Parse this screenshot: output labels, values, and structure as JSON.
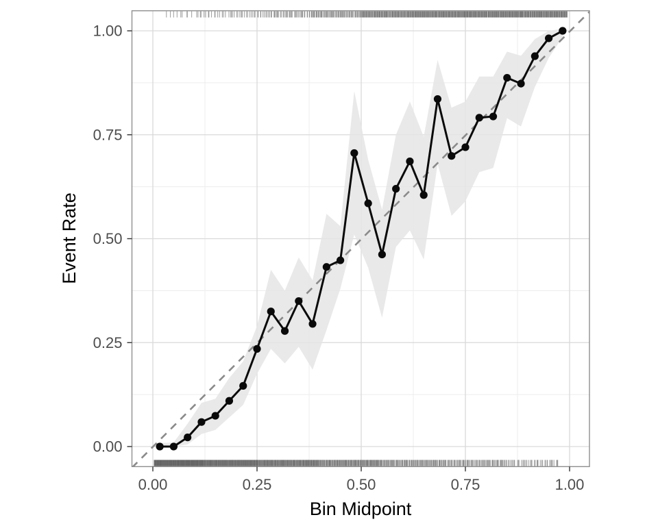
{
  "figure": {
    "background": "#ffffff"
  },
  "chart_data": {
    "type": "line",
    "title": "",
    "xlabel": "Bin Midpoint",
    "ylabel": "Event Rate",
    "xlim": [
      -0.05,
      1.048
    ],
    "ylim": [
      -0.048,
      1.048
    ],
    "grid": {
      "major": true,
      "minor": true,
      "legend": "none"
    },
    "x_major_ticks": [
      0,
      0.25,
      0.5,
      0.75,
      1.0
    ],
    "x_tick_labels": [
      "0.00",
      "0.25",
      "0.50",
      "0.75",
      "1.00"
    ],
    "x_minor_ticks": [
      0.125,
      0.375,
      0.625,
      0.875
    ],
    "y_major_ticks": [
      0,
      0.25,
      0.5,
      0.75,
      1.0
    ],
    "y_tick_labels": [
      "0.00",
      "0.25",
      "0.50",
      "0.75",
      "1.00"
    ],
    "y_minor_ticks": [
      0.125,
      0.375,
      0.625,
      0.875
    ],
    "reference_line": {
      "kind": "diagonal-identity",
      "style": "dashed",
      "color": "#8a8a8a"
    },
    "series": [
      {
        "name": "binned event rate",
        "marker": "point",
        "color": "#0a0a0a",
        "x": [
          0.0167,
          0.05,
          0.0833,
          0.1167,
          0.15,
          0.1833,
          0.2167,
          0.25,
          0.2833,
          0.3167,
          0.35,
          0.3833,
          0.4167,
          0.45,
          0.4833,
          0.5167,
          0.55,
          0.5833,
          0.6167,
          0.65,
          0.6833,
          0.7167,
          0.75,
          0.7833,
          0.8167,
          0.85,
          0.8833,
          0.9167,
          0.95,
          0.9833
        ],
        "y": [
          0.0,
          0.0,
          0.022,
          0.059,
          0.074,
          0.11,
          0.146,
          0.235,
          0.325,
          0.278,
          0.35,
          0.295,
          0.432,
          0.448,
          0.706,
          0.585,
          0.462,
          0.62,
          0.686,
          0.605,
          0.836,
          0.699,
          0.72,
          0.791,
          0.794,
          0.887,
          0.873,
          0.939,
          0.982,
          1.0
        ]
      }
    ],
    "ribbon": {
      "name": "confidence band",
      "color": "#e5e5e5",
      "opacity": 0.85,
      "x": [
        0.0167,
        0.05,
        0.0833,
        0.1167,
        0.15,
        0.1833,
        0.2167,
        0.25,
        0.2833,
        0.3167,
        0.35,
        0.3833,
        0.4167,
        0.45,
        0.4833,
        0.5167,
        0.55,
        0.5833,
        0.6167,
        0.65,
        0.6833,
        0.7167,
        0.75,
        0.7833,
        0.8167,
        0.85,
        0.8833,
        0.9167,
        0.95,
        0.9833
      ],
      "lower": [
        0.0,
        0.0,
        0.005,
        0.03,
        0.04,
        0.07,
        0.1,
        0.175,
        0.235,
        0.2,
        0.24,
        0.185,
        0.28,
        0.38,
        0.51,
        0.43,
        0.31,
        0.48,
        0.52,
        0.45,
        0.68,
        0.555,
        0.59,
        0.66,
        0.67,
        0.79,
        0.77,
        0.865,
        0.935,
        0.985
      ],
      "upper": [
        0.008,
        0.01,
        0.055,
        0.105,
        0.115,
        0.165,
        0.205,
        0.29,
        0.425,
        0.375,
        0.455,
        0.4,
        0.56,
        0.53,
        0.855,
        0.69,
        0.57,
        0.75,
        0.83,
        0.745,
        0.93,
        0.815,
        0.83,
        0.89,
        0.89,
        0.95,
        0.94,
        0.98,
        1.0,
        1.005
      ]
    },
    "rug_top": {
      "name": "rug of positive outcomes",
      "color": "#595959",
      "segments": [
        {
          "from": 0.028,
          "to": 0.1,
          "n": 9
        },
        {
          "from": 0.1,
          "to": 0.18,
          "n": 16
        },
        {
          "from": 0.18,
          "to": 0.28,
          "n": 28
        },
        {
          "from": 0.28,
          "to": 0.38,
          "n": 40
        },
        {
          "from": 0.38,
          "to": 0.5,
          "n": 70
        },
        {
          "from": 0.5,
          "to": 0.62,
          "n": 110
        },
        {
          "from": 0.62,
          "to": 0.78,
          "n": 170
        },
        {
          "from": 0.78,
          "to": 0.995,
          "n": 230
        }
      ]
    },
    "rug_bottom": {
      "name": "rug of negative outcomes",
      "color": "#595959",
      "segments": [
        {
          "from": 0.003,
          "to": 0.12,
          "n": 210
        },
        {
          "from": 0.12,
          "to": 0.25,
          "n": 190
        },
        {
          "from": 0.25,
          "to": 0.4,
          "n": 180
        },
        {
          "from": 0.4,
          "to": 0.55,
          "n": 140
        },
        {
          "from": 0.55,
          "to": 0.7,
          "n": 100
        },
        {
          "from": 0.7,
          "to": 0.85,
          "n": 80
        },
        {
          "from": 0.85,
          "to": 0.975,
          "n": 40
        }
      ]
    },
    "colors": {
      "panel_border": "#8f8f8f",
      "grid_major": "#d9d9d9",
      "grid_minor": "#ececec",
      "tick_mark": "#333333",
      "tick_label": "#4d4d4d",
      "axis_title": "#000000",
      "curve": "#0a0a0a",
      "ribbon": "#e5e5e5",
      "reference": "#8a8a8a",
      "rug": "#595959"
    }
  }
}
